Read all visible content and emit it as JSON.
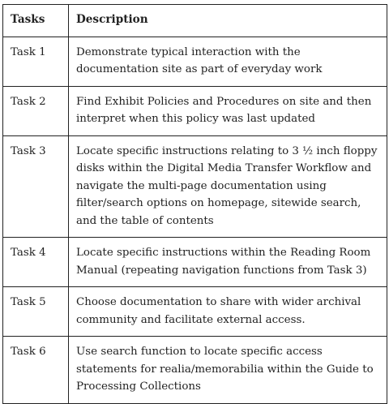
{
  "table": {
    "headers": [
      "Tasks",
      "Description"
    ],
    "rows": [
      {
        "task": "Task 1",
        "description": "Demonstrate typical interaction with the documentation site as part of everyday work"
      },
      {
        "task": "Task 2",
        "description": "Find Exhibit Policies and Procedures on site and then interpret when this policy was last updated"
      },
      {
        "task": "Task 3",
        "description": "Locate specific instructions relating to 3 ½ inch floppy disks within the Digital Media Transfer Workflow and navigate the multi-page documentation using filter/search options on homepage, sitewide search, and the table of contents"
      },
      {
        "task": "Task 4",
        "description": "Locate specific instructions within the Reading Room Manual (repeating navigation functions from Task 3)"
      },
      {
        "task": "Task 5",
        "description": "Choose documentation to share with wider archival community and facilitate external access."
      },
      {
        "task": "Task 6",
        "description": "Use search function to locate specific access statements for realia/memorabilia within the Guide to Processing Collections"
      }
    ]
  }
}
